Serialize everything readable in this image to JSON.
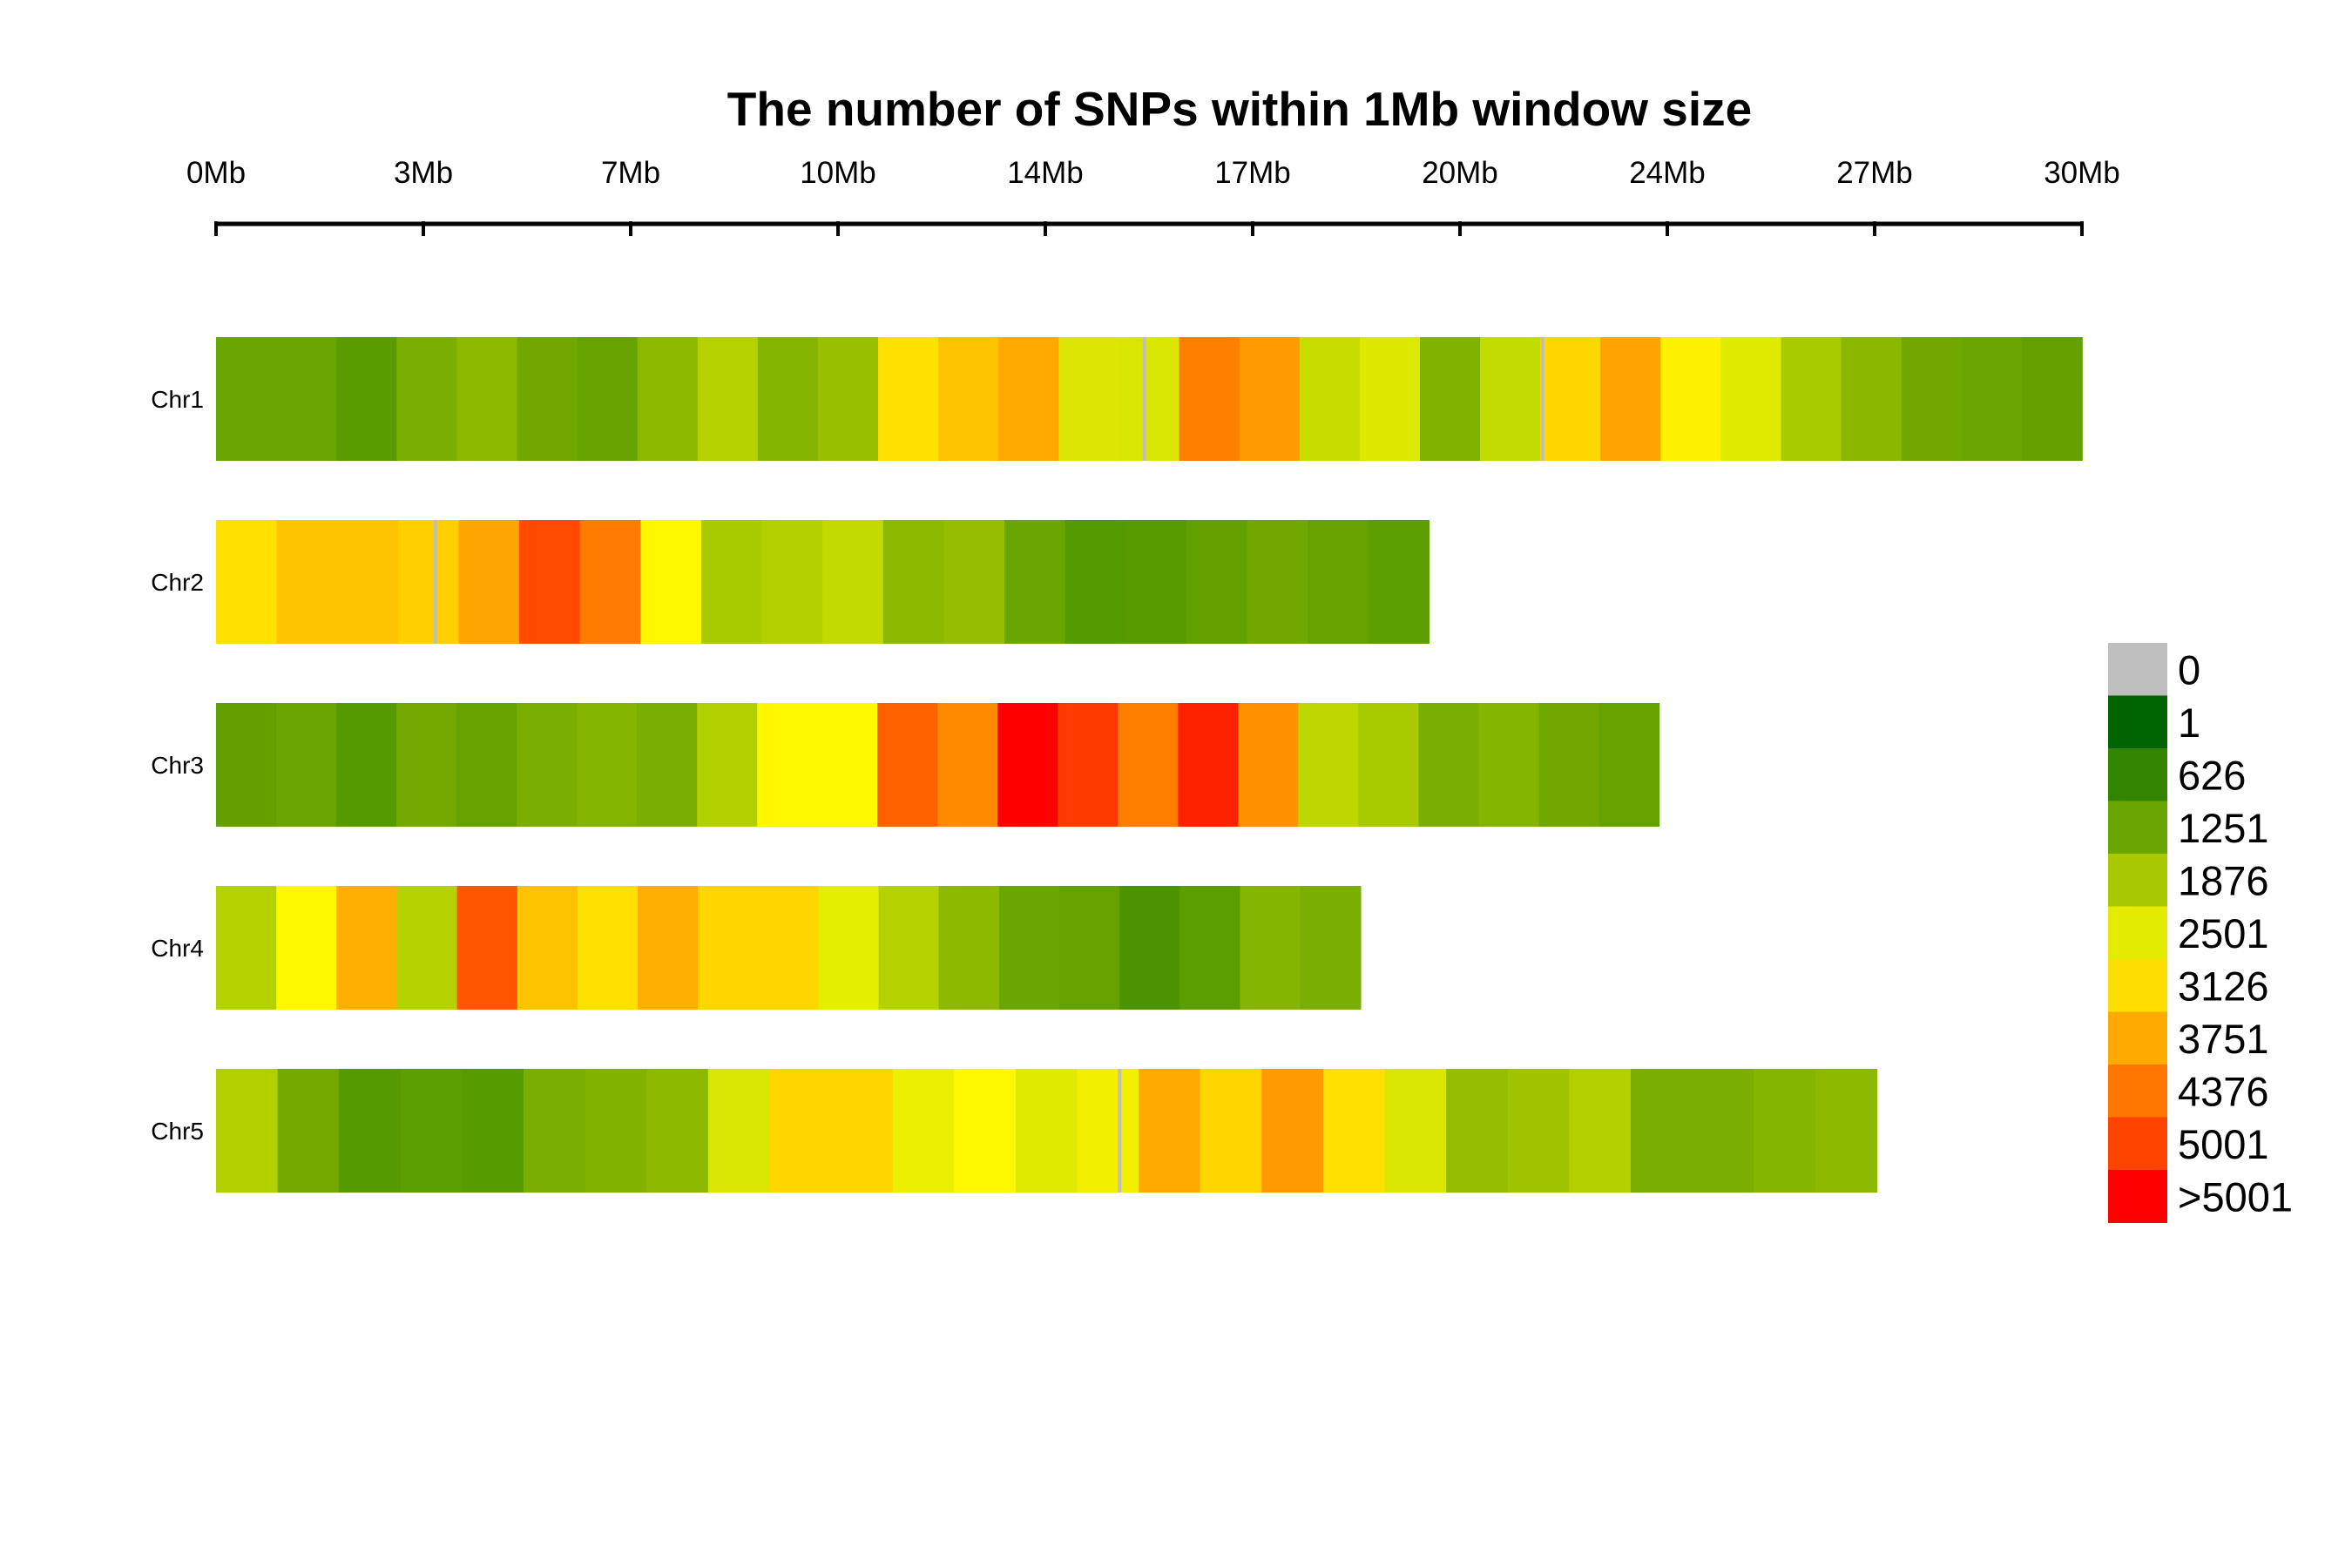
{
  "chart_data": {
    "type": "heatmap",
    "title": "The number of SNPs within 1Mb window size",
    "x_axis": {
      "tick_labels": [
        "0Mb",
        "3Mb",
        "7Mb",
        "10Mb",
        "14Mb",
        "17Mb",
        "20Mb",
        "24Mb",
        "27Mb",
        "30Mb"
      ],
      "position": "top",
      "range_mb": [
        0,
        30
      ]
    },
    "legend": {
      "placement": "right",
      "bins": [
        {
          "label": "0",
          "color": "#bebebe"
        },
        {
          "label": "1",
          "color": "#006400"
        },
        {
          "label": "626",
          "color": "#338500"
        },
        {
          "label": "1251",
          "color": "#6aa600"
        },
        {
          "label": "1876",
          "color": "#a8c800"
        },
        {
          "label": "2501",
          "color": "#e3ec00"
        },
        {
          "label": "3126",
          "color": "#ffdd00"
        },
        {
          "label": "3751",
          "color": "#ffaa00"
        },
        {
          "label": "4376",
          "color": "#ff7700"
        },
        {
          "label": "5001",
          "color": "#ff4400"
        },
        {
          "label": ">5001",
          "color": "#ff0000"
        }
      ]
    },
    "series": [
      {
        "name": "Chr1",
        "length_mb": 30.0,
        "windows": [
          "#6aa600",
          "#6aa600",
          "#5a9c00",
          "#7aae00",
          "#8cb800",
          "#70a800",
          "#66a300",
          "#8cb800",
          "#b5d100",
          "#86b500",
          "#98c000",
          "#ffe000",
          "#ffc200",
          "#ffa800",
          "#dde600",
          "#d8e600",
          "#ff7e00",
          "#ff9a00",
          "#c8dc00",
          "#dde800",
          "#82b200",
          "#c0dc00",
          "#ffd600",
          "#ffa300",
          "#fff200",
          "#e0ea00",
          "#a8cb00",
          "#8ab800",
          "#70a800",
          "#6aa600",
          "#62a100"
        ],
        "gaps_mb": [
          14.9,
          21.3
        ]
      },
      {
        "name": "Chr2",
        "length_mb": 19.5,
        "windows": [
          "#ffe000",
          "#ffc200",
          "#ffc200",
          "#ffd000",
          "#ffa500",
          "#ff4a00",
          "#ff7a00",
          "#fff700",
          "#a8cb00",
          "#b2d000",
          "#c2da00",
          "#8cb800",
          "#94bd00",
          "#6aa600",
          "#539900",
          "#579b00",
          "#62a100",
          "#70a800",
          "#64a200",
          "#5c9d00"
        ],
        "gaps_mb": [
          3.5
        ]
      },
      {
        "name": "Chr3",
        "length_mb": 23.2,
        "windows": [
          "#649f00",
          "#6aa600",
          "#549a00",
          "#72a900",
          "#64a200",
          "#7aae00",
          "#84b300",
          "#7aae00",
          "#b2d000",
          "#fff700",
          "#fff700",
          "#ff6000",
          "#ff8a00",
          "#ff0000",
          "#ff3a00",
          "#ff7e00",
          "#ff2200",
          "#ff9000",
          "#bcd800",
          "#a8cb00",
          "#7aae00",
          "#86b500",
          "#70a800",
          "#64a200"
        ],
        "gaps_mb": []
      },
      {
        "name": "Chr4",
        "length_mb": 18.4,
        "windows": [
          "#b5d100",
          "#fff700",
          "#ffaf00",
          "#b5d100",
          "#ff5500",
          "#ffc200",
          "#ffe000",
          "#ffaf00",
          "#ffd600",
          "#ffd600",
          "#e3ef00",
          "#b5d100",
          "#8cb800",
          "#6aa600",
          "#64a200",
          "#4c9300",
          "#5c9d00",
          "#86b500",
          "#7aae00"
        ],
        "gaps_mb": []
      },
      {
        "name": "Chr5",
        "length_mb": 26.7,
        "windows": [
          "#b2d000",
          "#72a900",
          "#549a00",
          "#5c9d00",
          "#569b00",
          "#7aae00",
          "#82b200",
          "#8cb800",
          "#d8e600",
          "#ffd600",
          "#ffd600",
          "#eaf000",
          "#fff700",
          "#e0ea00",
          "#f2f000",
          "#ffa800",
          "#ffd600",
          "#ff9a00",
          "#ffe000",
          "#d8e600",
          "#94bd00",
          "#a0c400",
          "#b2d000",
          "#7aae00",
          "#7aae00",
          "#86b500",
          "#8cb800"
        ],
        "gaps_mb": [
          14.5
        ]
      }
    ]
  }
}
